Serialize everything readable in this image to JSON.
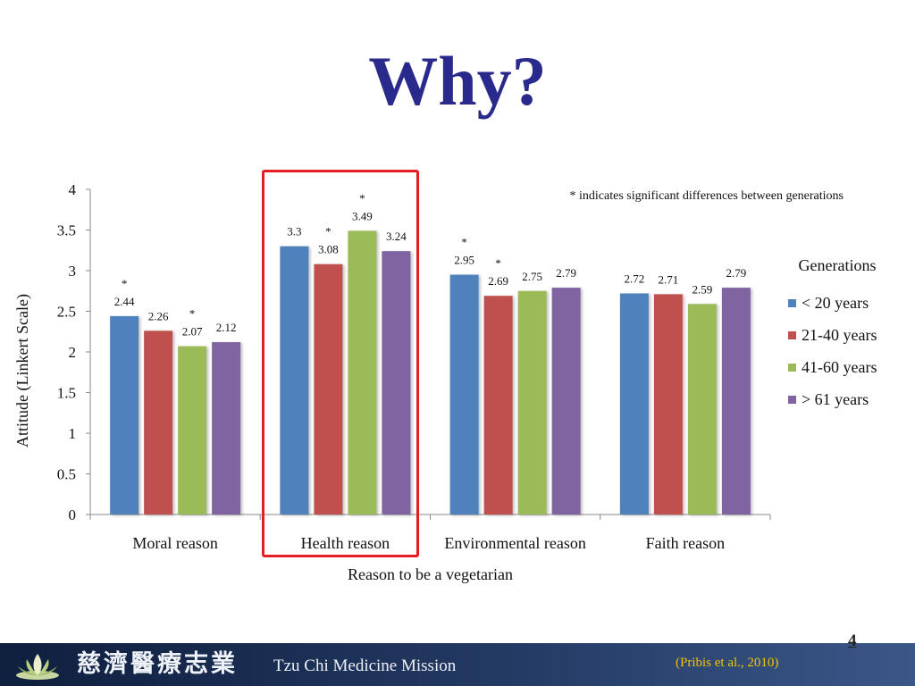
{
  "slide": {
    "title": "Why?",
    "page_number": "4",
    "citation": "(Pribis et al., 2010)",
    "footer_org_cjk": "慈濟醫療志業",
    "footer_org_en": "Tzu Chi Medicine Mission"
  },
  "colors": {
    "title": "#2a2a8c",
    "highlight": "#e31e24",
    "citation": "#f3c400"
  },
  "chart_data": {
    "type": "bar",
    "categories": [
      "Moral reason",
      "Health reason",
      "Environmental reason",
      "Faith reason"
    ],
    "series": [
      {
        "name": "< 20 years",
        "color": "#4f81bd",
        "values": [
          2.44,
          3.3,
          2.95,
          2.72
        ],
        "labels": [
          "2.44",
          "3.3",
          "2.95",
          "2.72"
        ]
      },
      {
        "name": "21-40 years",
        "color": "#c0504d",
        "values": [
          2.26,
          3.08,
          2.69,
          2.71
        ],
        "labels": [
          "2.26",
          "3.08",
          "2.69",
          "2.71"
        ]
      },
      {
        "name": "41-60 years",
        "color": "#9bbb59",
        "values": [
          2.07,
          3.49,
          2.75,
          2.59
        ],
        "labels": [
          "2.07",
          "3.49",
          "2.75",
          "2.59"
        ]
      },
      {
        "name": "> 61 years",
        "color": "#8064a2",
        "values": [
          2.12,
          3.24,
          2.79,
          2.79
        ],
        "labels": [
          "2.12",
          "3.24",
          "2.79",
          "2.79"
        ]
      }
    ],
    "significance_marks": [
      {
        "category": 0,
        "series": 0,
        "mark": "*"
      },
      {
        "category": 0,
        "series": 2,
        "mark": "*"
      },
      {
        "category": 1,
        "series": 1,
        "mark": "*"
      },
      {
        "category": 1,
        "series": 2,
        "mark": "*"
      },
      {
        "category": 2,
        "series": 0,
        "mark": "*"
      },
      {
        "category": 2,
        "series": 1,
        "mark": "*"
      }
    ],
    "annotation": "* indicates significant differences between generations",
    "xlabel": "Reason to be a vegetarian",
    "ylabel": "Attitude (Linkert Scale)",
    "ylim": [
      0,
      4
    ],
    "yticks": [
      "0",
      "0.5",
      "1",
      "1.5",
      "2",
      "2.5",
      "3",
      "3.5",
      "4"
    ],
    "legend_title": "Generations",
    "legend_position": "right",
    "grid": false,
    "highlighted_category": "Health reason"
  }
}
